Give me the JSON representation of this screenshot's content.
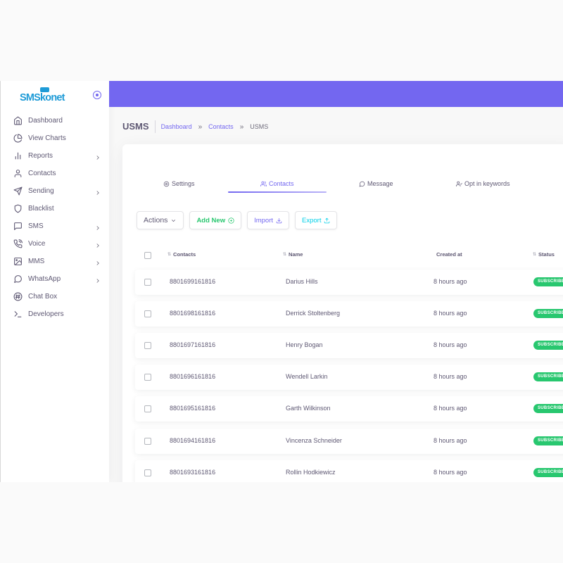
{
  "brand": {
    "name": "SMSkonet",
    "accent": "#1e9bd7"
  },
  "sidebar": {
    "items": [
      {
        "label": "Dashboard",
        "icon": "home-icon",
        "has_submenu": false
      },
      {
        "label": "View Charts",
        "icon": "pie-chart-icon",
        "has_submenu": false
      },
      {
        "label": "Reports",
        "icon": "bar-chart-icon",
        "has_submenu": true
      },
      {
        "label": "Contacts",
        "icon": "user-icon",
        "has_submenu": false
      },
      {
        "label": "Sending",
        "icon": "send-icon",
        "has_submenu": true
      },
      {
        "label": "Blacklist",
        "icon": "shield-icon",
        "has_submenu": false
      },
      {
        "label": "SMS",
        "icon": "message-square-icon",
        "has_submenu": true
      },
      {
        "label": "Voice",
        "icon": "phone-call-icon",
        "has_submenu": true
      },
      {
        "label": "MMS",
        "icon": "image-icon",
        "has_submenu": true
      },
      {
        "label": "WhatsApp",
        "icon": "message-circle-icon",
        "has_submenu": true
      },
      {
        "label": "Chat Box",
        "icon": "hash-icon",
        "has_submenu": false
      },
      {
        "label": "Developers",
        "icon": "terminal-icon",
        "has_submenu": false
      }
    ]
  },
  "header": {
    "title": "USMS",
    "breadcrumb": {
      "home": "Dashboard",
      "parent": "Contacts",
      "current": "USMS",
      "separator": "»"
    }
  },
  "tabs": [
    {
      "label": "Settings",
      "icon": "settings-icon",
      "active": false
    },
    {
      "label": "Contacts",
      "icon": "users-icon",
      "active": true
    },
    {
      "label": "Message",
      "icon": "message-circle-icon",
      "active": false
    },
    {
      "label": "Opt in keywords",
      "icon": "user-check-icon",
      "active": false
    }
  ],
  "toolbar": {
    "actions_label": "Actions",
    "add_label": "Add New",
    "import_label": "Import",
    "export_label": "Export"
  },
  "table": {
    "columns": [
      "Contacts",
      "Name",
      "Created at",
      "Status"
    ],
    "rows": [
      {
        "contact": "8801699161816",
        "name": "Darius Hills",
        "created": "8 hours ago",
        "status": "SUBSCRIBED"
      },
      {
        "contact": "8801698161816",
        "name": "Derrick Stoltenberg",
        "created": "8 hours ago",
        "status": "SUBSCRIBED"
      },
      {
        "contact": "8801697161816",
        "name": "Henry Bogan",
        "created": "8 hours ago",
        "status": "SUBSCRIBED"
      },
      {
        "contact": "8801696161816",
        "name": "Wendell Larkin",
        "created": "8 hours ago",
        "status": "SUBSCRIBED"
      },
      {
        "contact": "8801695161816",
        "name": "Garth Wilkinson",
        "created": "8 hours ago",
        "status": "SUBSCRIBED"
      },
      {
        "contact": "8801694161816",
        "name": "Vincenza Schneider",
        "created": "8 hours ago",
        "status": "SUBSCRIBED"
      },
      {
        "contact": "8801693161816",
        "name": "Rollin Hodkiewicz",
        "created": "8 hours ago",
        "status": "SUBSCRIBED"
      }
    ]
  },
  "colors": {
    "primary": "#7367f0",
    "success": "#28c76f",
    "info": "#00cfe8",
    "text": "#5e5873"
  }
}
